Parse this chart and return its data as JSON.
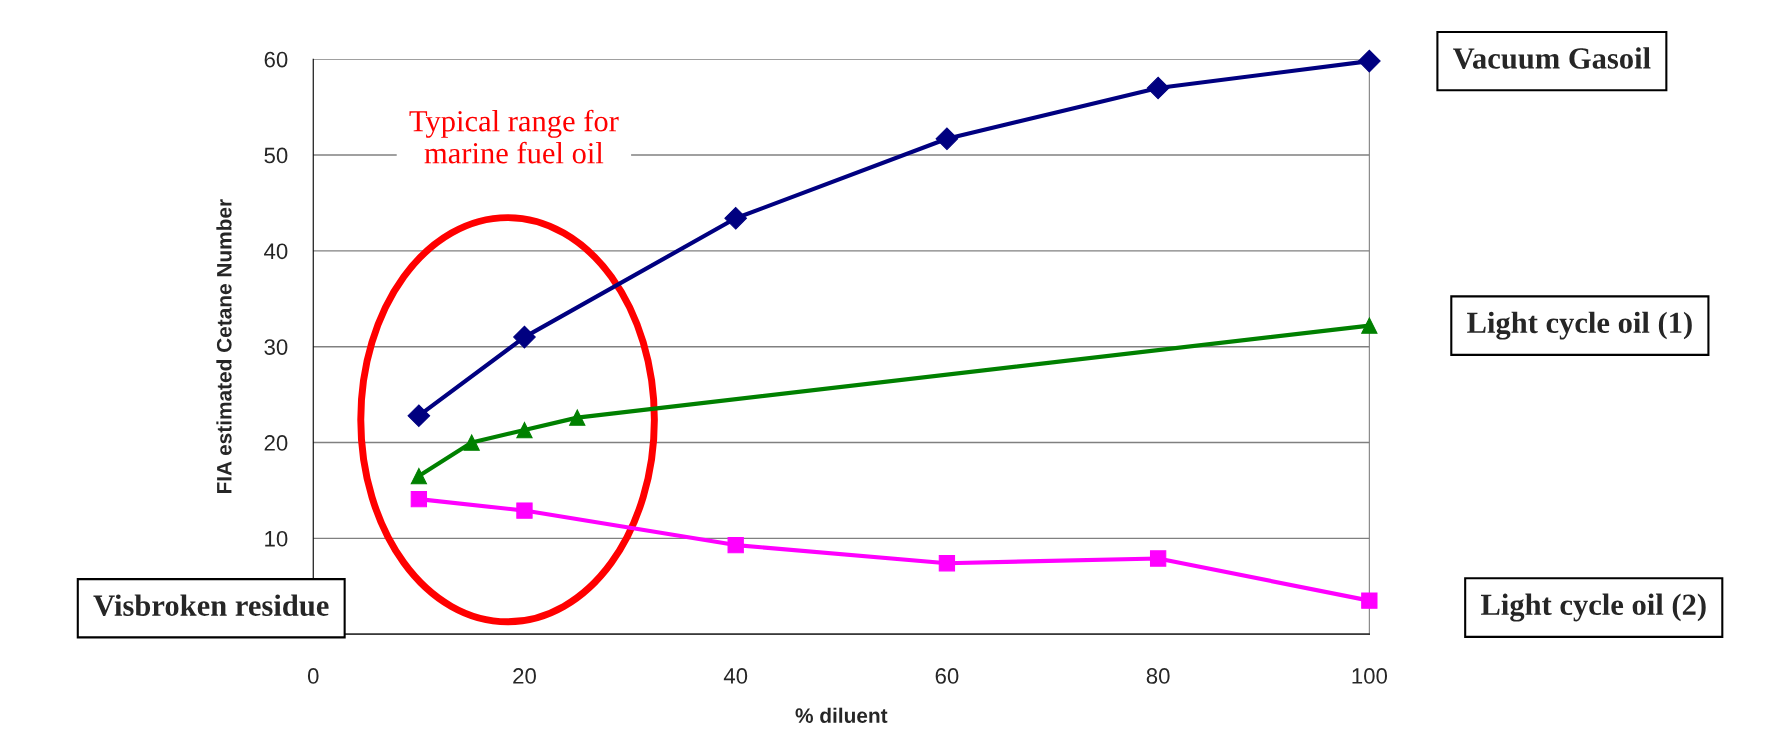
{
  "chart_data": {
    "type": "line",
    "xlabel": "% diluent",
    "ylabel": "FIA estimated Cetane Number",
    "series": [
      {
        "name": "Vacuum Gasoil",
        "color": "#000080",
        "marker": "diamond",
        "x": [
          10,
          20,
          40,
          60,
          80,
          100
        ],
        "values": [
          22.8,
          31.0,
          43.4,
          51.7,
          57.0,
          59.8
        ]
      },
      {
        "name": "Light cycle oil (1)",
        "color": "#008000",
        "marker": "triangle",
        "x": [
          10,
          15,
          20,
          25,
          100
        ],
        "values": [
          16.5,
          20.0,
          21.3,
          22.6,
          32.2
        ]
      },
      {
        "name": "Light cycle oil (2)",
        "color": "#ff00ff",
        "marker": "square",
        "x": [
          10,
          20,
          40,
          60,
          80,
          100
        ],
        "values": [
          14.1,
          12.9,
          9.3,
          7.4,
          7.9,
          3.5
        ]
      }
    ],
    "annotations": [
      "Typical range for\nmarine fuel oil",
      "Visbroken residue"
    ],
    "xlim": [
      0,
      100
    ],
    "xticks": [
      0,
      20,
      40,
      60,
      80,
      100
    ],
    "ylim": [
      0,
      60
    ],
    "yticks": [
      {
        "value": 0,
        "label": null
      },
      10,
      20,
      30,
      40,
      50,
      60
    ],
    "grid": "y",
    "legend": false,
    "line_style": "solid"
  }
}
